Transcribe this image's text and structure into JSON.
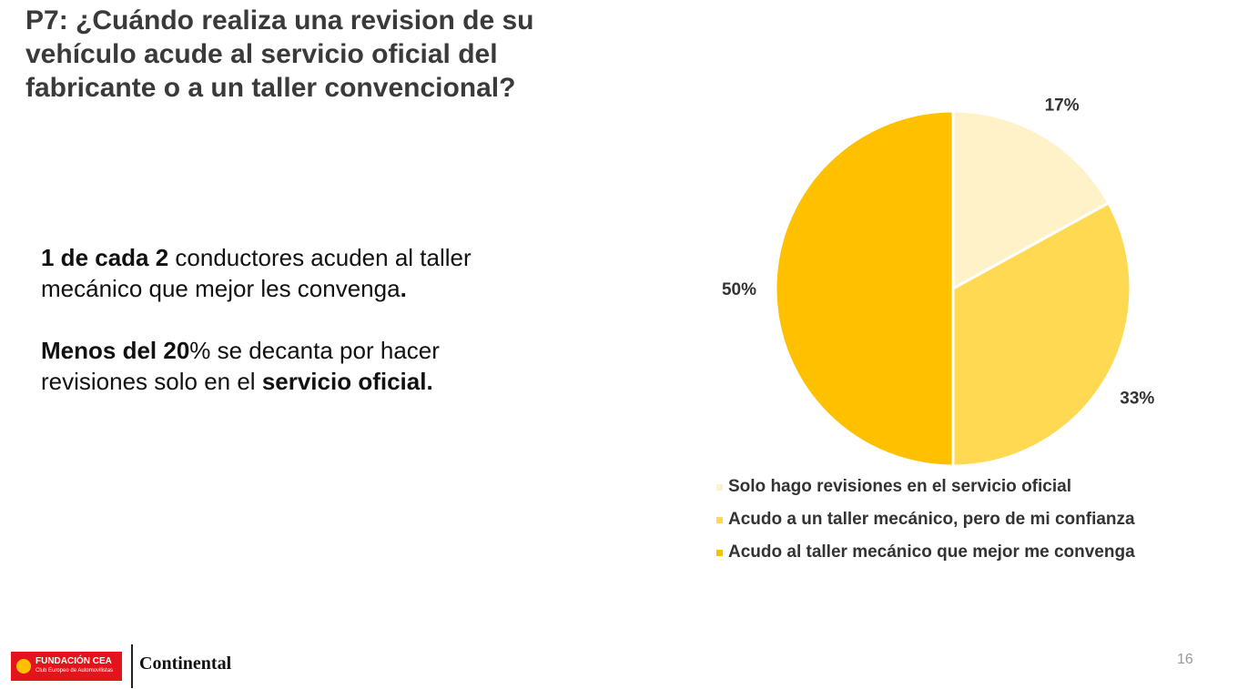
{
  "title": "P7: ¿Cuándo realiza una revision de su vehículo acude al servicio oficial del fabricante o a un taller convencional?",
  "body": {
    "p1_bold": "1 de cada 2",
    "p1_text": " conductores acuden al taller mecánico que mejor les convenga",
    "p1_end": ".",
    "p2_bold": "Menos del 20",
    "p2_text": "% se decanta por hacer revisiones solo en el ",
    "p2_bold2": "servicio oficial."
  },
  "chart_data": {
    "type": "pie",
    "slices": [
      {
        "label": "Solo hago revisiones en el servicio oficial",
        "value": 17,
        "display": "17%",
        "color": "#FFF2C9"
      },
      {
        "label": "Acudo a un taller mecánico, pero de mi confianza",
        "value": 33,
        "display": "33%",
        "color": "#FFD952"
      },
      {
        "label": "Acudo al taller mecánico que mejor me convenga",
        "value": 50,
        "display": "50%",
        "color": "#FFC000"
      }
    ],
    "start_angle": "12 o'clock",
    "direction": "clockwise",
    "legend_position": "bottom"
  },
  "footer": {
    "logo_cea_main": "FUNDACIÓN CEA",
    "logo_cea_sub": "Club Europeo de Automovilistas",
    "logo_continental": "Continental",
    "page_number": "16"
  }
}
